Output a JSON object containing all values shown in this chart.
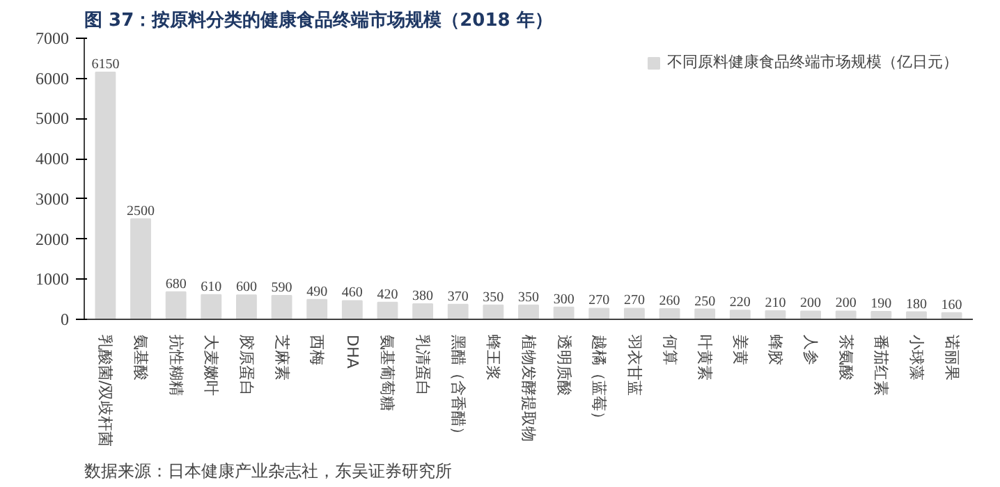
{
  "chart_data": {
    "type": "bar",
    "title": "图 37：按原料分类的健康食品终端市场规模（2018 年）",
    "categories": [
      "乳酸菌/双歧杆菌",
      "氨基酸",
      "抗性糊精",
      "大麦嫩叶",
      "胶原蛋白",
      "芝麻素",
      "西梅",
      "DHA",
      "氨基葡萄糖",
      "乳清蛋白",
      "黑醋（含香醋）",
      "蜂王浆",
      "植物发酵提取物",
      "透明质酸",
      "越橘（蓝莓）",
      "羽衣甘蓝",
      "何算",
      "叶黄素",
      "姜黄",
      "蜂胶",
      "人参",
      "茶氨酸",
      "番茄红素",
      "小球藻",
      "诺丽果"
    ],
    "series": [
      {
        "name": "不同原料健康食品终端市场规模（亿日元）",
        "color": "#d9d9d9",
        "values": [
          6150,
          2500,
          680,
          610,
          600,
          590,
          490,
          460,
          420,
          380,
          370,
          350,
          350,
          300,
          270,
          270,
          260,
          250,
          220,
          210,
          200,
          200,
          190,
          180,
          160
        ]
      }
    ],
    "ylim": [
      0,
      7000
    ],
    "yticks": [
      0,
      1000,
      2000,
      3000,
      4000,
      5000,
      6000,
      7000
    ],
    "data_labels": true,
    "grid": false,
    "legend": "top right",
    "annotations": [
      "数据来源：日本健康产业杂志社，东吴证券研究所"
    ]
  }
}
